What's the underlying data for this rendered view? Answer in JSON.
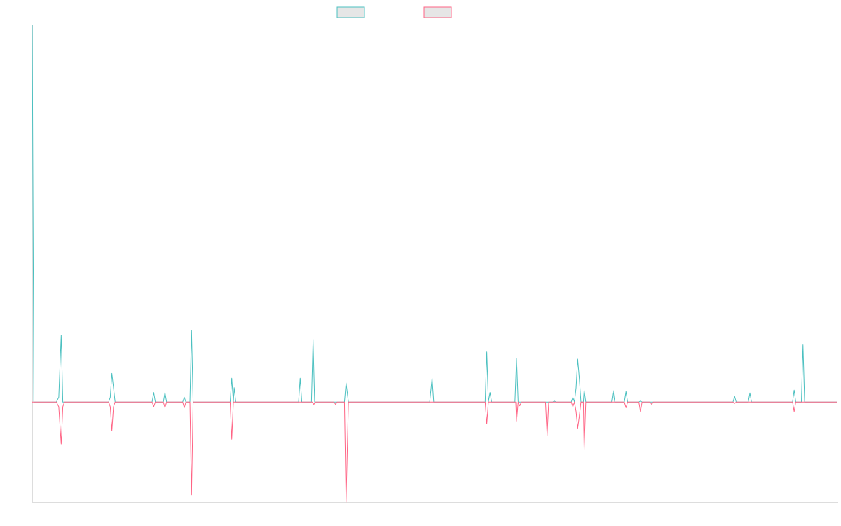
{
  "chart_data": {
    "type": "line",
    "title": "",
    "xlabel": "",
    "ylabel": "",
    "grid": false,
    "legend_position": "top",
    "colors": {
      "series_a": "#4bc0c0",
      "series_b": "#ff6384",
      "legend_fill": "#e6e6e6",
      "axis": "#dddddd"
    },
    "ylim": [
      -0.21,
      0.79
    ],
    "xlim": [
      0,
      1000
    ],
    "series": [
      {
        "key": "a",
        "points": [
          [
            0,
            0.79
          ],
          [
            2,
            0.0
          ],
          [
            30,
            0.0
          ],
          [
            33,
            0.01
          ],
          [
            36,
            0.14
          ],
          [
            38,
            0.0
          ],
          [
            95,
            0.0
          ],
          [
            97,
            0.01
          ],
          [
            99,
            0.06
          ],
          [
            101,
            0.03
          ],
          [
            103,
            0.0
          ],
          [
            149,
            0.0
          ],
          [
            151,
            0.02
          ],
          [
            153,
            0.0
          ],
          [
            163,
            0.0
          ],
          [
            165,
            0.02
          ],
          [
            167,
            0.0
          ],
          [
            187,
            0.0
          ],
          [
            189,
            0.01
          ],
          [
            191,
            0.0
          ],
          [
            196,
            0.0
          ],
          [
            198,
            0.15
          ],
          [
            200,
            0.0
          ],
          [
            246,
            0.0
          ],
          [
            248,
            0.05
          ],
          [
            250,
            0.0
          ],
          [
            251,
            0.03
          ],
          [
            253,
            0.0
          ],
          [
            331,
            0.0
          ],
          [
            333,
            0.05
          ],
          [
            335,
            0.0
          ],
          [
            347,
            0.0
          ],
          [
            349,
            0.13
          ],
          [
            351,
            0.0
          ],
          [
            388,
            0.0
          ],
          [
            390,
            0.04
          ],
          [
            393,
            0.0
          ],
          [
            494,
            0.0
          ],
          [
            497,
            0.05
          ],
          [
            499,
            0.0
          ],
          [
            563,
            0.0
          ],
          [
            565,
            0.105
          ],
          [
            567,
            0.0
          ],
          [
            569,
            0.02
          ],
          [
            571,
            0.0
          ],
          [
            600,
            0.0
          ],
          [
            602,
            0.092
          ],
          [
            604,
            0.0
          ],
          [
            647,
            0.0
          ],
          [
            649,
            0.002
          ],
          [
            651,
            0.0
          ],
          [
            670,
            0.0
          ],
          [
            672,
            0.01
          ],
          [
            674,
            0.0
          ],
          [
            676,
            0.03
          ],
          [
            678,
            0.09
          ],
          [
            680,
            0.05
          ],
          [
            682,
            0.0
          ],
          [
            685,
            0.0
          ],
          [
            686,
            0.025
          ],
          [
            688,
            0.0
          ],
          [
            720,
            0.0
          ],
          [
            722,
            0.024
          ],
          [
            724,
            0.0
          ],
          [
            736,
            0.0
          ],
          [
            738,
            0.022
          ],
          [
            740,
            0.0
          ],
          [
            754,
            0.0
          ],
          [
            756,
            0.002
          ],
          [
            758,
            0.0
          ],
          [
            871,
            0.0
          ],
          [
            873,
            0.012
          ],
          [
            875,
            0.0
          ],
          [
            890,
            0.0
          ],
          [
            892,
            0.019
          ],
          [
            894,
            0.0
          ],
          [
            945,
            0.0
          ],
          [
            947,
            0.025
          ],
          [
            949,
            0.0
          ],
          [
            956,
            0.0
          ],
          [
            958,
            0.12
          ],
          [
            960,
            0.0
          ],
          [
            1000,
            0.0
          ]
        ]
      },
      {
        "key": "b",
        "points": [
          [
            0,
            0.0
          ],
          [
            30,
            0.0
          ],
          [
            33,
            -0.01
          ],
          [
            36,
            -0.088
          ],
          [
            38,
            -0.01
          ],
          [
            40,
            0.0
          ],
          [
            95,
            0.0
          ],
          [
            97,
            -0.01
          ],
          [
            99,
            -0.06
          ],
          [
            101,
            -0.01
          ],
          [
            103,
            0.0
          ],
          [
            149,
            0.0
          ],
          [
            151,
            -0.01
          ],
          [
            153,
            0.0
          ],
          [
            163,
            0.0
          ],
          [
            165,
            -0.012
          ],
          [
            167,
            0.0
          ],
          [
            187,
            0.0
          ],
          [
            189,
            -0.012
          ],
          [
            191,
            0.0
          ],
          [
            196,
            0.0
          ],
          [
            198,
            -0.195
          ],
          [
            200,
            0.0
          ],
          [
            246,
            0.0
          ],
          [
            248,
            -0.078
          ],
          [
            250,
            0.0
          ],
          [
            348,
            0.0
          ],
          [
            350,
            -0.005
          ],
          [
            352,
            0.0
          ],
          [
            375,
            0.0
          ],
          [
            377,
            -0.005
          ],
          [
            379,
            0.0
          ],
          [
            388,
            0.0
          ],
          [
            390,
            -0.21
          ],
          [
            393,
            0.0
          ],
          [
            563,
            0.0
          ],
          [
            565,
            -0.046
          ],
          [
            567,
            0.0
          ],
          [
            601,
            0.0
          ],
          [
            602,
            -0.04
          ],
          [
            604,
            0.0
          ],
          [
            606,
            -0.008
          ],
          [
            608,
            0.0
          ],
          [
            638,
            0.0
          ],
          [
            640,
            -0.07
          ],
          [
            642,
            0.0
          ],
          [
            670,
            0.0
          ],
          [
            672,
            -0.01
          ],
          [
            674,
            0.0
          ],
          [
            676,
            -0.02
          ],
          [
            678,
            -0.055
          ],
          [
            680,
            -0.03
          ],
          [
            682,
            0.0
          ],
          [
            685,
            0.0
          ],
          [
            686,
            -0.1
          ],
          [
            688,
            0.0
          ],
          [
            736,
            0.0
          ],
          [
            738,
            -0.012
          ],
          [
            740,
            0.0
          ],
          [
            754,
            0.0
          ],
          [
            756,
            -0.02
          ],
          [
            758,
            0.0
          ],
          [
            768,
            0.0
          ],
          [
            770,
            -0.005
          ],
          [
            772,
            0.0
          ],
          [
            871,
            0.0
          ],
          [
            873,
            -0.003
          ],
          [
            875,
            0.0
          ],
          [
            945,
            0.0
          ],
          [
            947,
            -0.02
          ],
          [
            949,
            0.0
          ],
          [
            1000,
            0.0
          ]
        ]
      }
    ]
  }
}
